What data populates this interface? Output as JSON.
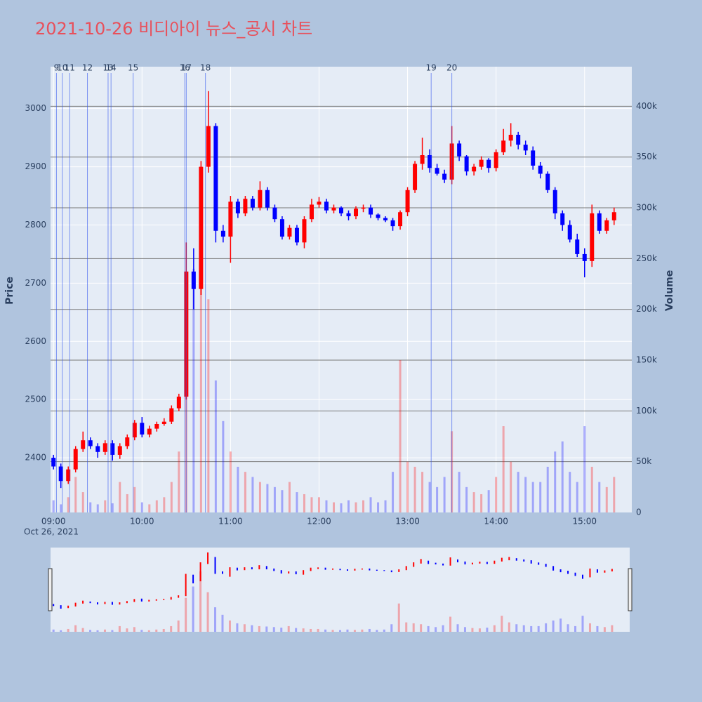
{
  "chart_data": {
    "type": "candlestick",
    "title": "2021-10-26 비디아이 뉴스_공시 차트",
    "y_label": "Price",
    "y2_label": "Volume",
    "x_date_label": "Oct 26, 2021",
    "increasing_color": "#ff0000",
    "decreasing_color": "#0000ff",
    "x": [
      "09:00",
      "09:05",
      "09:10",
      "09:15",
      "09:20",
      "09:25",
      "09:30",
      "09:35",
      "09:40",
      "09:45",
      "09:50",
      "09:55",
      "10:00",
      "10:05",
      "10:10",
      "10:15",
      "10:20",
      "10:25",
      "10:30",
      "10:35",
      "10:40",
      "10:45",
      "10:50",
      "10:55",
      "11:00",
      "11:05",
      "11:10",
      "11:15",
      "11:20",
      "11:25",
      "11:30",
      "11:35",
      "11:40",
      "11:45",
      "11:50",
      "11:55",
      "12:00",
      "12:05",
      "12:10",
      "12:15",
      "12:20",
      "12:25",
      "12:30",
      "12:35",
      "12:40",
      "12:45",
      "12:50",
      "12:55",
      "13:00",
      "13:05",
      "13:10",
      "13:15",
      "13:20",
      "13:25",
      "13:30",
      "13:35",
      "13:40",
      "13:45",
      "13:50",
      "13:55",
      "14:00",
      "14:05",
      "14:10",
      "14:15",
      "14:20",
      "14:25",
      "14:30",
      "14:35",
      "14:40",
      "14:45",
      "14:50",
      "14:55",
      "15:00",
      "15:05",
      "15:10",
      "15:15",
      "15:20"
    ],
    "open": [
      2400,
      2385,
      2360,
      2380,
      2415,
      2430,
      2420,
      2410,
      2425,
      2405,
      2420,
      2435,
      2460,
      2440,
      2450,
      2458,
      2462,
      2485,
      2505,
      2720,
      2690,
      2900,
      2970,
      2790,
      2780,
      2840,
      2820,
      2845,
      2830,
      2860,
      2830,
      2810,
      2780,
      2795,
      2770,
      2810,
      2835,
      2840,
      2825,
      2830,
      2820,
      2815,
      2828,
      2830,
      2818,
      2812,
      2808,
      2798,
      2822,
      2860,
      2905,
      2920,
      2898,
      2888,
      2878,
      2940,
      2918,
      2892,
      2900,
      2912,
      2898,
      2925,
      2945,
      2955,
      2938,
      2928,
      2902,
      2888,
      2860,
      2820,
      2800,
      2775,
      2750,
      2738,
      2820,
      2790,
      2808
    ],
    "high": [
      2405,
      2390,
      2385,
      2420,
      2445,
      2435,
      2425,
      2430,
      2430,
      2425,
      2440,
      2465,
      2470,
      2455,
      2462,
      2468,
      2490,
      2510,
      2770,
      2760,
      2910,
      3030,
      2975,
      2800,
      2850,
      2845,
      2850,
      2850,
      2875,
      2865,
      2835,
      2815,
      2800,
      2800,
      2815,
      2845,
      2848,
      2845,
      2835,
      2832,
      2825,
      2832,
      2835,
      2835,
      2820,
      2815,
      2812,
      2825,
      2865,
      2910,
      2950,
      2930,
      2905,
      2895,
      2970,
      2945,
      2920,
      2905,
      2918,
      2915,
      2930,
      2965,
      2975,
      2960,
      2945,
      2935,
      2908,
      2892,
      2865,
      2825,
      2808,
      2785,
      2760,
      2835,
      2825,
      2812,
      2830
    ],
    "low": [
      2380,
      2348,
      2355,
      2375,
      2410,
      2415,
      2400,
      2405,
      2395,
      2398,
      2415,
      2430,
      2435,
      2435,
      2445,
      2455,
      2458,
      2480,
      2500,
      2655,
      2680,
      2890,
      2770,
      2770,
      2735,
      2812,
      2815,
      2825,
      2825,
      2825,
      2805,
      2775,
      2775,
      2765,
      2760,
      2805,
      2830,
      2820,
      2820,
      2815,
      2808,
      2810,
      2822,
      2812,
      2808,
      2805,
      2790,
      2792,
      2815,
      2855,
      2895,
      2890,
      2885,
      2872,
      2870,
      2910,
      2885,
      2885,
      2895,
      2890,
      2892,
      2920,
      2935,
      2930,
      2920,
      2895,
      2880,
      2855,
      2810,
      2790,
      2770,
      2745,
      2710,
      2728,
      2785,
      2785,
      2800
    ],
    "close": [
      2385,
      2360,
      2380,
      2415,
      2430,
      2420,
      2410,
      2425,
      2405,
      2420,
      2435,
      2460,
      2440,
      2450,
      2458,
      2462,
      2485,
      2505,
      2720,
      2690,
      2900,
      2970,
      2790,
      2780,
      2840,
      2820,
      2845,
      2830,
      2860,
      2830,
      2810,
      2780,
      2795,
      2770,
      2810,
      2835,
      2840,
      2825,
      2830,
      2820,
      2815,
      2828,
      2830,
      2818,
      2812,
      2808,
      2798,
      2822,
      2860,
      2905,
      2920,
      2898,
      2888,
      2878,
      2940,
      2918,
      2892,
      2900,
      2912,
      2898,
      2925,
      2945,
      2955,
      2938,
      2928,
      2902,
      2888,
      2860,
      2820,
      2800,
      2775,
      2750,
      2738,
      2820,
      2790,
      2808,
      2822
    ],
    "volume": [
      12000,
      8000,
      15000,
      35000,
      20000,
      10000,
      8000,
      12000,
      9000,
      30000,
      18000,
      25000,
      10000,
      8000,
      12000,
      15000,
      30000,
      60000,
      180000,
      240000,
      320000,
      210000,
      130000,
      90000,
      60000,
      45000,
      40000,
      35000,
      30000,
      28000,
      25000,
      22000,
      30000,
      20000,
      18000,
      15000,
      15000,
      12000,
      10000,
      9000,
      12000,
      10000,
      12000,
      15000,
      10000,
      12000,
      40000,
      150000,
      50000,
      45000,
      40000,
      30000,
      25000,
      35000,
      80000,
      40000,
      25000,
      20000,
      18000,
      22000,
      35000,
      85000,
      50000,
      40000,
      35000,
      30000,
      30000,
      45000,
      60000,
      70000,
      40000,
      30000,
      85000,
      45000,
      30000,
      25000,
      35000
    ],
    "news": [
      {
        "label": "9",
        "x": "09:02"
      },
      {
        "label": "10",
        "x": "09:06"
      },
      {
        "label": "11",
        "x": "09:11"
      },
      {
        "label": "12",
        "x": "09:23"
      },
      {
        "label": "13",
        "x": "09:37"
      },
      {
        "label": "14",
        "x": "09:39"
      },
      {
        "label": "15",
        "x": "09:54"
      },
      {
        "label": "16",
        "x": "10:29"
      },
      {
        "label": "17",
        "x": "10:30"
      },
      {
        "label": "18",
        "x": "10:43"
      },
      {
        "label": "19",
        "x": "13:16"
      },
      {
        "label": "20",
        "x": "13:30"
      }
    ],
    "xlim": [
      "08:58",
      "15:32"
    ],
    "xticks": [
      "09:00",
      "10:00",
      "11:00",
      "12:00",
      "13:00",
      "14:00",
      "15:00"
    ],
    "ylim": [
      2306,
      3072
    ],
    "yticks": [
      2400,
      2500,
      2600,
      2700,
      2800,
      2900,
      3000
    ],
    "y2lim": [
      0,
      439000
    ],
    "y2ticks": [
      0,
      {
        "value": 50000,
        "label": "50k"
      },
      {
        "value": 100000,
        "label": "100k"
      },
      {
        "value": 150000,
        "label": "150k"
      },
      {
        "value": 200000,
        "label": "200k"
      },
      {
        "value": 250000,
        "label": "250k"
      },
      {
        "value": 300000,
        "label": "300k"
      },
      {
        "value": 350000,
        "label": "350k"
      },
      {
        "value": 400000,
        "label": "400k"
      }
    ],
    "grid": true
  }
}
